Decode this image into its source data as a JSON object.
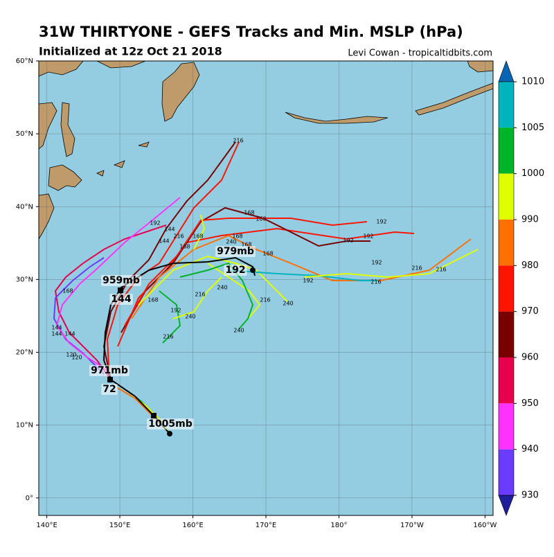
{
  "map_data": {
    "title": "31W THIRTYONE - GEFS Tracks and Min. MSLP (hPa)",
    "subtitle": "Initialized at 12z Oct 21 2018",
    "credit": "Levi Cowan - tropicaltidbits.com",
    "lon_range": [
      138.9,
      201.1
    ],
    "lat_range": [
      -2.4,
      60
    ],
    "lon_ticks": [
      {
        "value": 140,
        "label": "140°E"
      },
      {
        "value": 150,
        "label": "150°E"
      },
      {
        "value": 160,
        "label": "160°E"
      },
      {
        "value": 170,
        "label": "170°E"
      },
      {
        "value": 180,
        "label": "180°"
      },
      {
        "value": 190,
        "label": "170°W"
      },
      {
        "value": 200,
        "label": "160°W"
      }
    ],
    "lat_ticks": [
      {
        "value": 0,
        "label": "0°"
      },
      {
        "value": 10,
        "label": "10°N"
      },
      {
        "value": 20,
        "label": "20°N"
      },
      {
        "value": 30,
        "label": "30°N"
      },
      {
        "value": 40,
        "label": "40°N"
      },
      {
        "value": 50,
        "label": "50°N"
      },
      {
        "value": 60,
        "label": "60°N"
      }
    ],
    "colorbar": {
      "ticks": [
        1010,
        1005,
        1000,
        990,
        980,
        970,
        960,
        950,
        940,
        930
      ],
      "colors": [
        "#0a64b4",
        "#00b4be",
        "#00b42a",
        "#dfff00",
        "#ff7000",
        "#ff1400",
        "#780000",
        "#e6004e",
        "#ff32ff",
        "#6a3cff",
        "#1e1e9a"
      ]
    },
    "annotations": [
      "959mb",
      "144",
      "971mb",
      "72",
      "979mb",
      "192",
      "1005mb"
    ],
    "hour_labels": [
      "216",
      "168",
      "168",
      "192",
      "192",
      "192",
      "192",
      "144",
      "144",
      "216",
      "168",
      "168",
      "168",
      "168",
      "168",
      "192",
      "216",
      "216",
      "216",
      "192",
      "216",
      "240",
      "240",
      "216",
      "240",
      "192",
      "168",
      "168",
      "144",
      "144",
      "144",
      "120",
      "120",
      "240",
      "240",
      "216"
    ]
  }
}
